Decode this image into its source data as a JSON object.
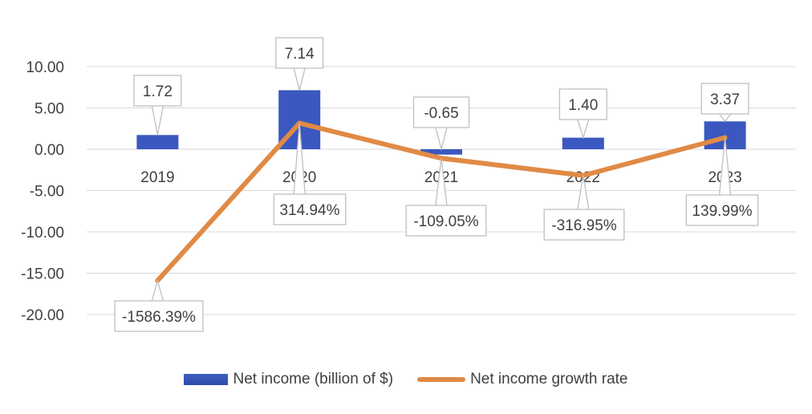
{
  "chart_data": {
    "type": "bar+line",
    "categories": [
      "2019",
      "2020",
      "2021",
      "2022",
      "2023"
    ],
    "series": [
      {
        "name": "Net income (billion of $)",
        "type": "bar",
        "values": [
          1.72,
          7.14,
          -0.65,
          1.4,
          3.37
        ],
        "labels": [
          "1.72",
          "7.14",
          "-0.65",
          "1.40",
          "3.37"
        ],
        "color": "#3a58c0"
      },
      {
        "name": "Net income growth rate",
        "type": "line",
        "values": [
          -1586.39,
          314.94,
          -109.05,
          -316.95,
          139.99
        ],
        "labels": [
          "-1586.39%",
          "314.94%",
          "-109.05%",
          "-316.95%",
          "139.99%"
        ],
        "color": "#e08a45"
      }
    ],
    "y_ticks": [
      "10.00",
      "5.00",
      "0.00",
      "-5.00",
      "-10.00",
      "-15.00",
      "-20.00"
    ],
    "ylim": [
      -20,
      10
    ],
    "grid": true,
    "legend": "bottom"
  }
}
